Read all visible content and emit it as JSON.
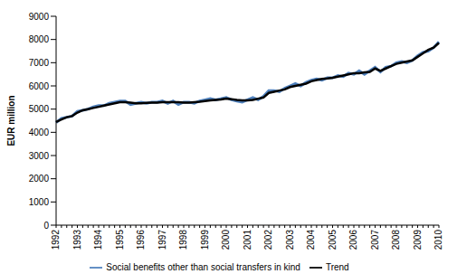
{
  "chart_data": {
    "type": "line",
    "y_label": "EUR million",
    "categories": [
      "1992",
      null,
      null,
      null,
      "1993",
      null,
      null,
      null,
      "1994",
      null,
      null,
      null,
      "1995",
      null,
      null,
      null,
      "1996",
      null,
      null,
      null,
      "1997",
      null,
      null,
      null,
      "1998",
      null,
      null,
      null,
      "1999",
      null,
      null,
      null,
      "2000",
      null,
      null,
      null,
      "2001",
      null,
      null,
      null,
      "2002",
      null,
      null,
      null,
      "2003",
      null,
      null,
      null,
      "2004",
      null,
      null,
      null,
      "2005",
      null,
      null,
      null,
      "2006",
      null,
      null,
      null,
      "2007",
      null,
      null,
      null,
      "2008",
      null,
      null,
      null,
      "2009",
      null,
      null,
      null,
      "2010"
    ],
    "series": [
      {
        "name": "Social benefits other than social transfers in kind",
        "color": "#4f81bd",
        "values": [
          4420,
          4600,
          4650,
          4700,
          4900,
          4950,
          5000,
          5100,
          5150,
          5150,
          5250,
          5300,
          5350,
          5350,
          5200,
          5250,
          5300,
          5250,
          5300,
          5300,
          5350,
          5250,
          5350,
          5200,
          5300,
          5300,
          5250,
          5350,
          5400,
          5450,
          5400,
          5450,
          5500,
          5400,
          5350,
          5300,
          5400,
          5500,
          5400,
          5550,
          5800,
          5800,
          5750,
          5900,
          6000,
          6100,
          6000,
          6150,
          6250,
          6300,
          6250,
          6350,
          6350,
          6450,
          6400,
          6550,
          6500,
          6650,
          6500,
          6650,
          6800,
          6600,
          6800,
          6850,
          7000,
          7050,
          7000,
          7100,
          7300,
          7450,
          7500,
          7650,
          7900
        ]
      },
      {
        "name": "Trend",
        "color": "#000000",
        "values": [
          4450,
          4550,
          4650,
          4700,
          4850,
          4950,
          5000,
          5050,
          5100,
          5150,
          5200,
          5250,
          5300,
          5300,
          5280,
          5250,
          5250,
          5270,
          5280,
          5280,
          5300,
          5300,
          5300,
          5300,
          5280,
          5280,
          5300,
          5320,
          5350,
          5380,
          5400,
          5420,
          5450,
          5430,
          5400,
          5380,
          5380,
          5400,
          5450,
          5500,
          5700,
          5750,
          5800,
          5850,
          5950,
          6000,
          6050,
          6100,
          6200,
          6250,
          6300,
          6320,
          6350,
          6400,
          6450,
          6500,
          6550,
          6550,
          6580,
          6600,
          6750,
          6650,
          6750,
          6850,
          6950,
          7000,
          7050,
          7100,
          7250,
          7400,
          7550,
          7650,
          7850
        ]
      }
    ],
    "ylim": [
      0,
      9000
    ],
    "yticks": [
      0,
      1000,
      2000,
      3000,
      4000,
      5000,
      6000,
      7000,
      8000,
      9000
    ],
    "grid": false,
    "legend": "bottom",
    "marker": "none"
  }
}
